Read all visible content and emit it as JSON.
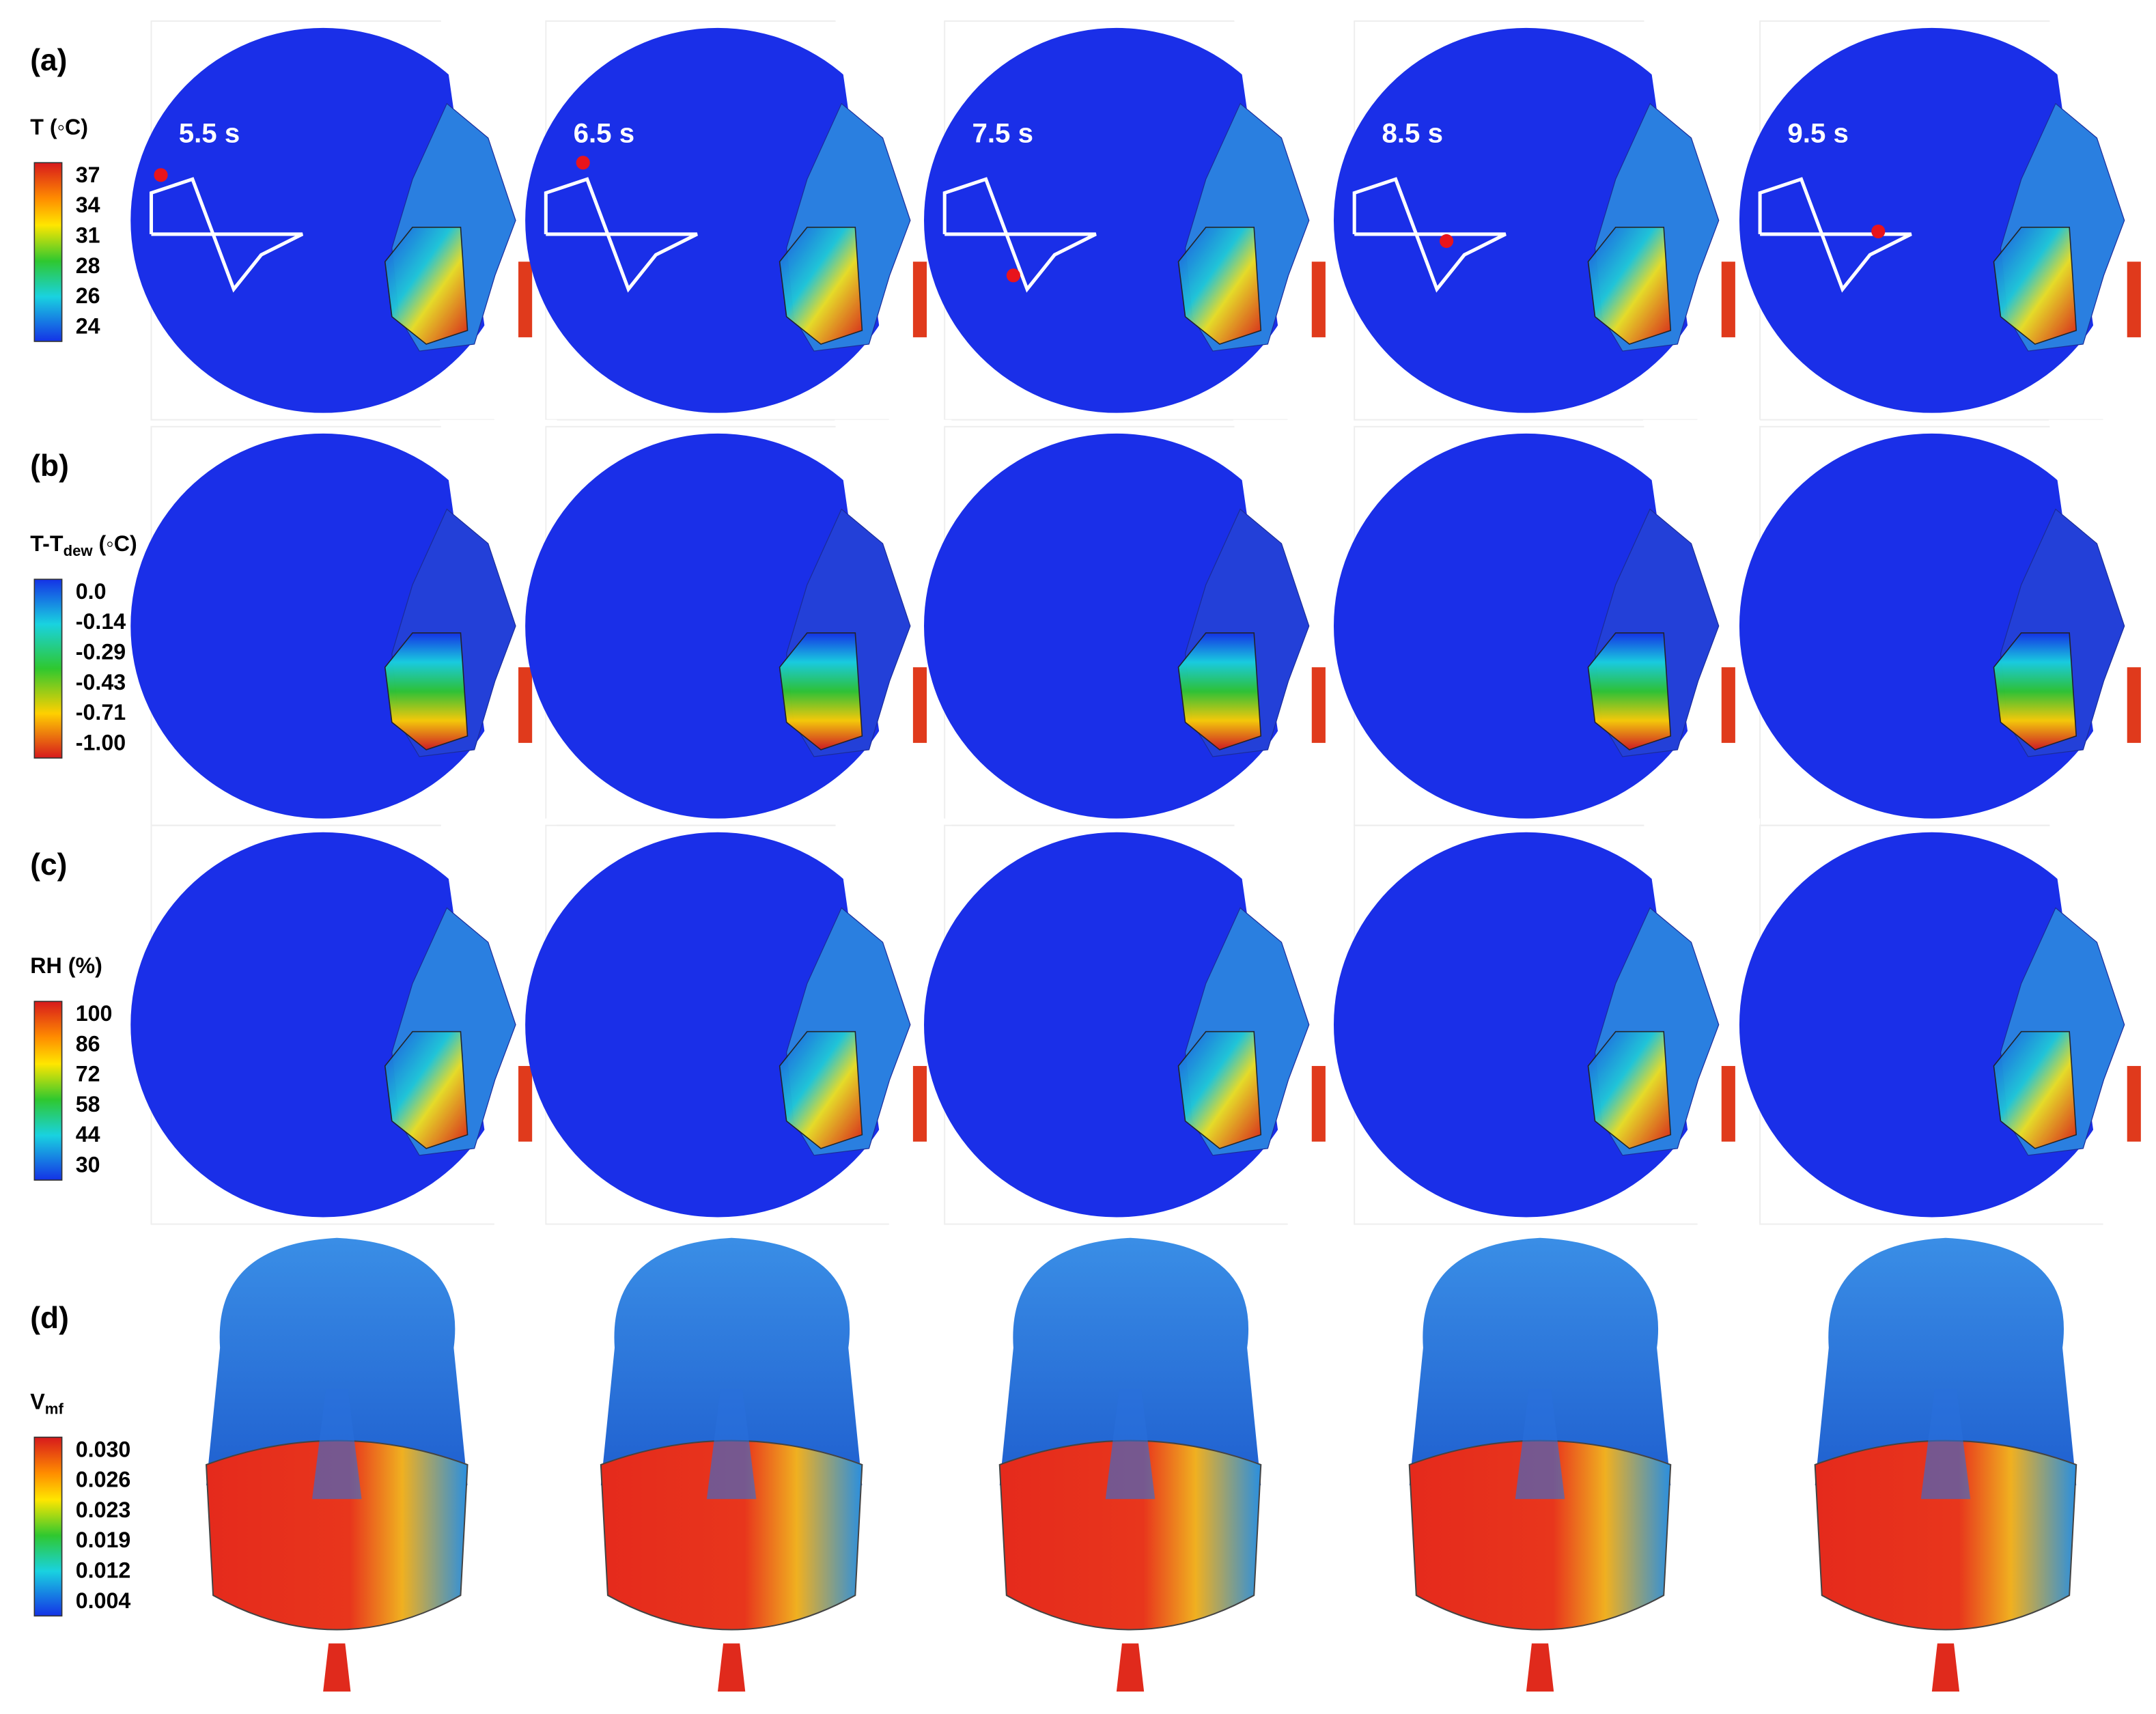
{
  "times": [
    "5.5 s",
    "6.5 s",
    "7.5 s",
    "8.5 s",
    "9.5 s"
  ],
  "rows": [
    {
      "label": "(a)",
      "colorbar": {
        "title": [
          "T (◦C)"
        ],
        "ticks": [
          "37",
          "34",
          "31",
          "28",
          "26",
          "24"
        ]
      }
    },
    {
      "label": "(b)",
      "colorbar": {
        "title": [
          "T-T",
          "dew",
          " (◦C)"
        ],
        "ticks": [
          "0.0",
          "-0.14",
          "-0.29",
          "-0.43",
          "-0.71",
          "-1.00"
        ]
      }
    },
    {
      "label": "(c)",
      "colorbar": {
        "title": [
          "RH (%)"
        ],
        "ticks": [
          "100",
          "86",
          "72",
          "58",
          "44",
          "30"
        ]
      }
    },
    {
      "label": "(d)",
      "colorbar": {
        "title": [
          "V",
          "mf"
        ],
        "ticks": [
          "0.030",
          "0.026",
          "0.023",
          "0.019",
          "0.012",
          "0.004"
        ]
      }
    }
  ]
}
